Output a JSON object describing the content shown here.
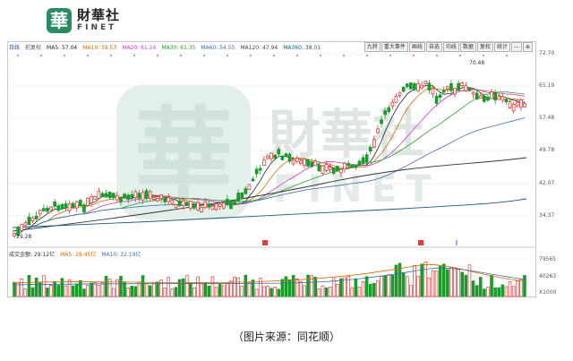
{
  "brand": {
    "mark": "華",
    "name_cn": "財華社",
    "name_en": "FINET"
  },
  "toolbar": {
    "buttons": [
      "九转",
      "重大事件",
      "画线",
      "自选",
      "均线",
      "数据",
      "复权",
      "统计",
      "—",
      "⊕"
    ]
  },
  "indicators": {
    "label": "日线",
    "sub_label": "前复权",
    "items": [
      {
        "text": "MA5: 57.04",
        "color": "#222222"
      },
      {
        "text": "MA10: 59.53",
        "color": "#d06c00"
      },
      {
        "text": "MA20: 61.24",
        "color": "#d03cc8"
      },
      {
        "text": "MA30: 61.35",
        "color": "#2e9e2e"
      },
      {
        "text": "MA60: 54.55",
        "color": "#3e6ea6"
      },
      {
        "text": "MA120: 47.94",
        "color": "#444444"
      },
      {
        "text": "MA360: 38.01",
        "color": "#1a5a7a"
      }
    ]
  },
  "price_axis": [
    "72.70",
    "65.19",
    "57.48",
    "49.78",
    "42.07",
    "34.37"
  ],
  "volume_info": {
    "label": "成交金额: 29.12亿",
    "items": [
      {
        "text": "MA5: 28.45亿",
        "color": "#d06c00"
      },
      {
        "text": "MA10: 32.19亿",
        "color": "#3e6ea6"
      }
    ]
  },
  "volume_axis": [
    "79565",
    "40263",
    "X1000"
  ],
  "annotations": {
    "high": "70.48",
    "low": "29.28"
  },
  "colors": {
    "up": "#e23b3b",
    "down": "#1a9a2a",
    "watermark": "#cfe3da"
  },
  "caption": "（图片来源：同花顺）"
}
